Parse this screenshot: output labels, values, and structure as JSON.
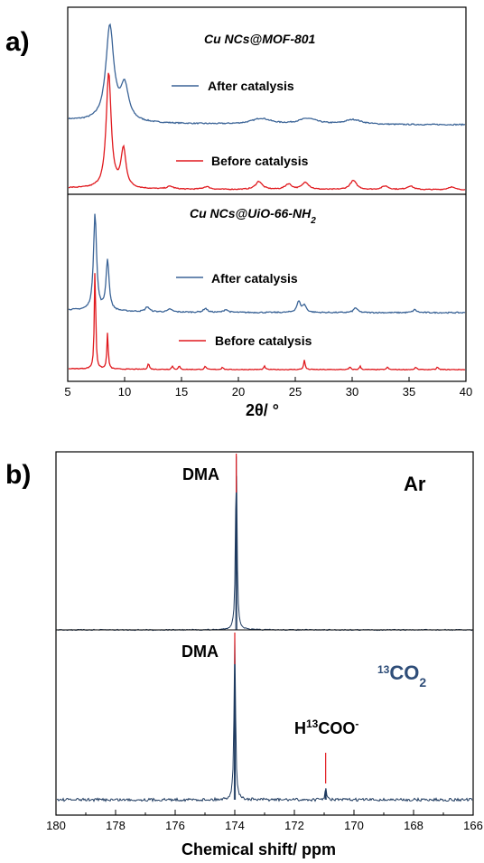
{
  "panel_a": {
    "label": "a)",
    "xlabel": "2θ/ °",
    "xticks": [
      "5",
      "10",
      "15",
      "20",
      "25",
      "30",
      "35",
      "40"
    ],
    "top": {
      "title": "Cu NCs@MOF-801",
      "after_label": "After catalysis",
      "before_label": "Before catalysis"
    },
    "bottom": {
      "title_main": "Cu NCs@UiO-66-NH",
      "title_sub": "2",
      "after_label": "After catalysis",
      "before_label": "Before catalysis"
    }
  },
  "panel_b": {
    "label": "b)",
    "xlabel": "Chemical shift/ ppm",
    "xticks": [
      "180",
      "178",
      "176",
      "174",
      "172",
      "170",
      "168",
      "166"
    ],
    "top": {
      "peak_label": "DMA",
      "condition": "Ar"
    },
    "bottom": {
      "peak_label": "DMA",
      "cond_sup": "13",
      "cond_main": "CO",
      "cond_sub": "2",
      "formate_h": "H",
      "formate_sup": "13",
      "formate_mid": "COO",
      "formate_charge": "-"
    }
  },
  "colors": {
    "after": "#3b6497",
    "before": "#e0191e",
    "nmr": "#1e3a5f",
    "nmr_marker": "#e0191e",
    "co2_label": "#2e4d78"
  },
  "chart_data": [
    {
      "type": "line",
      "title": "Cu NCs@MOF-801",
      "xlabel": "2θ/ °",
      "xlim": [
        5,
        40
      ],
      "y_units": "arbitrary intensity (offset stacked)",
      "series": [
        {
          "name": "After catalysis",
          "color": "#3b6497",
          "baseline": 0.47,
          "peaks": [
            {
              "x": 8.7,
              "h": 1.0,
              "w": 0.42
            },
            {
              "x": 10.0,
              "h": 0.36,
              "w": 0.42
            },
            {
              "x": 22.0,
              "h": 0.06,
              "w": 1.0
            },
            {
              "x": 26.1,
              "h": 0.06,
              "w": 1.0
            },
            {
              "x": 30.1,
              "h": 0.05,
              "w": 0.9
            }
          ]
        },
        {
          "name": "Before catalysis",
          "color": "#e0191e",
          "baseline": 0.0,
          "peaks": [
            {
              "x": 8.6,
              "h": 1.28,
              "w": 0.26
            },
            {
              "x": 9.9,
              "h": 0.43,
              "w": 0.26
            },
            {
              "x": 14.0,
              "h": 0.03,
              "w": 0.35
            },
            {
              "x": 17.2,
              "h": 0.03,
              "w": 0.35
            },
            {
              "x": 21.8,
              "h": 0.09,
              "w": 0.35
            },
            {
              "x": 24.4,
              "h": 0.06,
              "w": 0.35
            },
            {
              "x": 25.9,
              "h": 0.08,
              "w": 0.35
            },
            {
              "x": 30.1,
              "h": 0.1,
              "w": 0.35
            },
            {
              "x": 32.9,
              "h": 0.04,
              "w": 0.35
            },
            {
              "x": 35.1,
              "h": 0.04,
              "w": 0.35
            },
            {
              "x": 38.7,
              "h": 0.03,
              "w": 0.35
            }
          ]
        }
      ]
    },
    {
      "type": "line",
      "title": "Cu NCs@UiO-66-NH2",
      "xlabel": "2θ/ °",
      "xlim": [
        5,
        40
      ],
      "y_units": "arbitrary intensity (offset stacked)",
      "series": [
        {
          "name": "After catalysis",
          "color": "#3b6497",
          "baseline": 0.55,
          "peaks": [
            {
              "x": 7.4,
              "h": 1.0,
              "w": 0.16
            },
            {
              "x": 8.5,
              "h": 0.52,
              "w": 0.16
            },
            {
              "x": 12.0,
              "h": 0.05,
              "w": 0.2
            },
            {
              "x": 14.0,
              "h": 0.03,
              "w": 0.2
            },
            {
              "x": 17.1,
              "h": 0.04,
              "w": 0.2
            },
            {
              "x": 18.9,
              "h": 0.03,
              "w": 0.2
            },
            {
              "x": 25.3,
              "h": 0.11,
              "w": 0.2
            },
            {
              "x": 25.8,
              "h": 0.07,
              "w": 0.2
            },
            {
              "x": 30.3,
              "h": 0.05,
              "w": 0.2
            },
            {
              "x": 35.5,
              "h": 0.03,
              "w": 0.2
            }
          ]
        },
        {
          "name": "Before catalysis",
          "color": "#e0191e",
          "baseline": 0.0,
          "peaks": [
            {
              "x": 7.4,
              "h": 1.2,
              "w": 0.07
            },
            {
              "x": 8.5,
              "h": 0.42,
              "w": 0.07
            },
            {
              "x": 12.1,
              "h": 0.07,
              "w": 0.08
            },
            {
              "x": 14.2,
              "h": 0.04,
              "w": 0.08
            },
            {
              "x": 14.8,
              "h": 0.04,
              "w": 0.08
            },
            {
              "x": 17.1,
              "h": 0.04,
              "w": 0.08
            },
            {
              "x": 18.6,
              "h": 0.03,
              "w": 0.08
            },
            {
              "x": 22.3,
              "h": 0.04,
              "w": 0.08
            },
            {
              "x": 25.8,
              "h": 0.11,
              "w": 0.08
            },
            {
              "x": 29.8,
              "h": 0.03,
              "w": 0.08
            },
            {
              "x": 30.7,
              "h": 0.04,
              "w": 0.08
            },
            {
              "x": 33.1,
              "h": 0.03,
              "w": 0.08
            },
            {
              "x": 35.6,
              "h": 0.03,
              "w": 0.08
            },
            {
              "x": 37.5,
              "h": 0.03,
              "w": 0.08
            }
          ]
        }
      ]
    },
    {
      "type": "line",
      "title": "Ar",
      "xlabel": "Chemical shift/ ppm",
      "xlim": [
        180,
        166
      ],
      "x_reversed": true,
      "series": [
        {
          "name": "Ar",
          "color": "#1e3a5f",
          "peaks": [
            {
              "x": 173.95,
              "h": 1.0,
              "w": 0.03,
              "label": "DMA"
            }
          ]
        }
      ]
    },
    {
      "type": "line",
      "title": "13CO2",
      "xlabel": "Chemical shift/ ppm",
      "xlim": [
        180,
        166
      ],
      "x_reversed": true,
      "series": [
        {
          "name": "13CO2",
          "color": "#1e3a5f",
          "peaks": [
            {
              "x": 174.0,
              "h": 1.0,
              "w": 0.03,
              "label": "DMA"
            },
            {
              "x": 170.95,
              "h": 0.07,
              "w": 0.03,
              "label": "H13COO-"
            }
          ]
        }
      ]
    }
  ]
}
